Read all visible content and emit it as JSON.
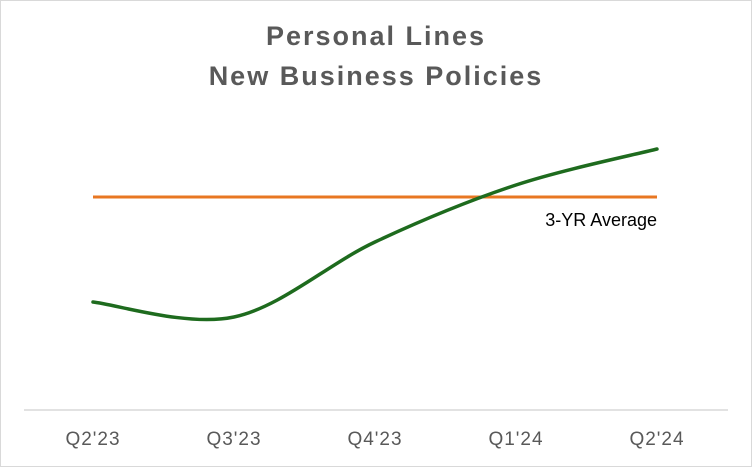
{
  "chart_data": {
    "type": "line",
    "title": [
      "Personal Lines",
      "New Business Policies"
    ],
    "categories": [
      "Q2'23",
      "Q3'23",
      "Q4'23",
      "Q1'24",
      "Q2'24"
    ],
    "series": [
      {
        "color": "#1e6b1e",
        "values": [
          36,
          31,
          56,
          75,
          87
        ]
      }
    ],
    "average": {
      "name": "3-YR Average",
      "value": 71,
      "color": "#e87722"
    },
    "ylim": [
      0,
      100
    ]
  }
}
